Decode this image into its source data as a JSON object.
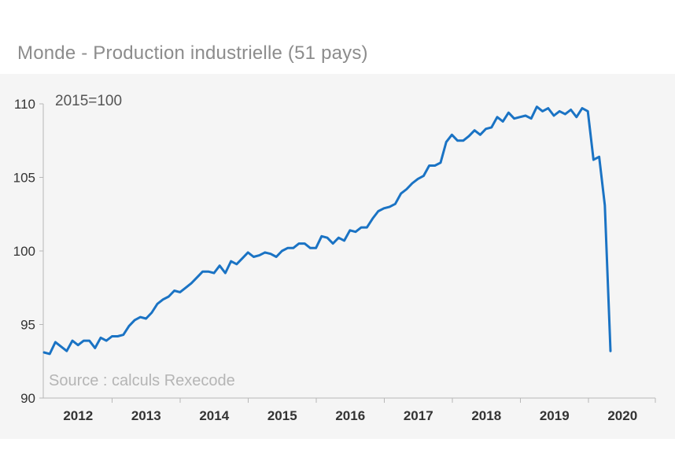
{
  "chart_data": {
    "type": "line",
    "title": "Monde - Production industrielle (51 pays)",
    "annotation": "2015=100",
    "source": "Source : calculs Rexecode",
    "ylim": [
      90,
      110
    ],
    "yticks": [
      90,
      95,
      100,
      105,
      110
    ],
    "x_tick_labels": [
      "2012",
      "2013",
      "2014",
      "2015",
      "2016",
      "2017",
      "2018",
      "2019",
      "2020"
    ],
    "grid": false,
    "series": [
      {
        "color": "#1a73c4",
        "frequency": "monthly",
        "start": "2012-01",
        "values": [
          93.1,
          93.0,
          93.8,
          93.5,
          93.2,
          93.9,
          93.6,
          93.9,
          93.9,
          93.4,
          94.1,
          93.9,
          94.2,
          94.2,
          94.3,
          94.9,
          95.3,
          95.5,
          95.4,
          95.8,
          96.4,
          96.7,
          96.9,
          97.3,
          97.2,
          97.5,
          97.8,
          98.2,
          98.6,
          98.6,
          98.5,
          99.0,
          98.5,
          99.3,
          99.1,
          99.5,
          99.9,
          99.6,
          99.7,
          99.9,
          99.8,
          99.6,
          100.0,
          100.2,
          100.2,
          100.5,
          100.5,
          100.2,
          100.2,
          101.0,
          100.9,
          100.5,
          100.9,
          100.7,
          101.4,
          101.3,
          101.6,
          101.6,
          102.2,
          102.7,
          102.9,
          103.0,
          103.2,
          103.9,
          104.2,
          104.6,
          104.9,
          105.1,
          105.8,
          105.8,
          106.0,
          107.4,
          107.9,
          107.5,
          107.5,
          107.8,
          108.2,
          107.9,
          108.3,
          108.4,
          109.1,
          108.8,
          109.4,
          109.0,
          109.1,
          109.2,
          109.0,
          109.8,
          109.5,
          109.7,
          109.2,
          109.5,
          109.3,
          109.6,
          109.1,
          109.7,
          109.5,
          106.2,
          106.4,
          103.1,
          93.2
        ]
      }
    ]
  }
}
